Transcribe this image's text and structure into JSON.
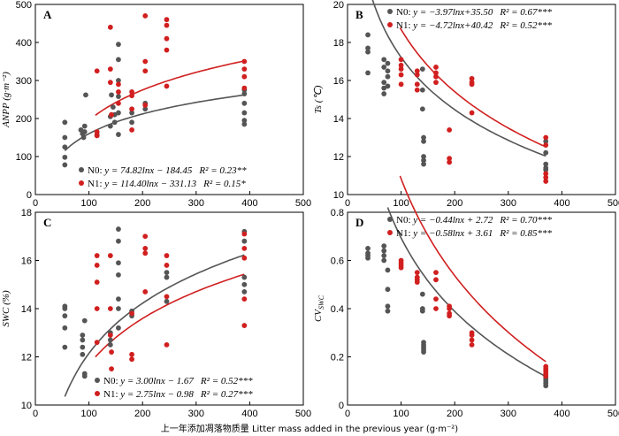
{
  "figure": {
    "xlabel": "上一年添加凋落物质量 Litter mass added in the previous year (g·m⁻²)"
  },
  "colors": {
    "N0": "#555555",
    "N1": "#d11f1f"
  },
  "chart_data": [
    {
      "type": "scatter",
      "panel": "A",
      "ylabel": "ANPP (g·m⁻²)",
      "xlim": [
        0,
        500
      ],
      "ylim": [
        0,
        500
      ],
      "xticks": [
        "0",
        "100",
        "200",
        "300",
        "400",
        "500"
      ],
      "yticks": [
        "0",
        "100",
        "200",
        "300",
        "400",
        "500"
      ],
      "legend_placement": "bottom-left",
      "series": [
        {
          "name": "N0",
          "equation": "y = 74.82lnx − 184.45",
          "r2": "R² = 0.23**",
          "fit": {
            "a": 74.82,
            "b": -184.45,
            "x_range": [
              55,
              390
            ]
          },
          "points": [
            [
              55,
              190
            ],
            [
              55,
              150
            ],
            [
              55,
              125
            ],
            [
              55,
              98
            ],
            [
              55,
              78
            ],
            [
              85,
              170
            ],
            [
              88,
              160
            ],
            [
              90,
              150
            ],
            [
              92,
              165
            ],
            [
              92,
              180
            ],
            [
              94,
              262
            ],
            [
              115,
              155
            ],
            [
              115,
              158
            ],
            [
              140,
              180
            ],
            [
              140,
              205
            ],
            [
              142,
              262
            ],
            [
              145,
              230
            ],
            [
              148,
              210
            ],
            [
              148,
              190
            ],
            [
              155,
              395
            ],
            [
              155,
              355
            ],
            [
              155,
              300
            ],
            [
              155,
              258
            ],
            [
              155,
              215
            ],
            [
              155,
              158
            ],
            [
              180,
              215
            ],
            [
              180,
              190
            ],
            [
              205,
              240
            ],
            [
              205,
              225
            ],
            [
              390,
              275
            ],
            [
              390,
              265
            ],
            [
              390,
              240
            ],
            [
              390,
              215
            ],
            [
              390,
              195
            ],
            [
              390,
              185
            ]
          ]
        },
        {
          "name": "N1",
          "equation": "y = 114.40lnx − 331.13",
          "r2": "R² = 0.15*",
          "fit": {
            "a": 114.4,
            "b": -331.13,
            "x_range": [
              112,
              390
            ]
          },
          "points": [
            [
              115,
              325
            ],
            [
              115,
              165
            ],
            [
              115,
              155
            ],
            [
              140,
              440
            ],
            [
              140,
              330
            ],
            [
              140,
              295
            ],
            [
              142,
              210
            ],
            [
              155,
              290
            ],
            [
              155,
              270
            ],
            [
              155,
              240
            ],
            [
              180,
              270
            ],
            [
              180,
              260
            ],
            [
              180,
              225
            ],
            [
              180,
              170
            ],
            [
              205,
              470
            ],
            [
              205,
              350
            ],
            [
              205,
              325
            ],
            [
              205,
              235
            ],
            [
              245,
              460
            ],
            [
              245,
              445
            ],
            [
              245,
              410
            ],
            [
              245,
              380
            ],
            [
              245,
              285
            ],
            [
              390,
              350
            ],
            [
              390,
              330
            ],
            [
              390,
              310
            ],
            [
              390,
              280
            ]
          ]
        }
      ]
    },
    {
      "type": "scatter",
      "panel": "B",
      "ylabel": "Ts (℃)",
      "xlim": [
        0,
        500
      ],
      "ylim": [
        10,
        20
      ],
      "xticks": [
        "0",
        "100",
        "200",
        "300",
        "400",
        "500"
      ],
      "yticks": [
        "10",
        "12",
        "14",
        "16",
        "18",
        "20"
      ],
      "legend_placement": "top-right",
      "series": [
        {
          "name": "N0",
          "equation": "y = −3.97lnx+35.50",
          "r2": "R² = 0.67***",
          "fit": {
            "a": -3.97,
            "b": 35.5,
            "x_range": [
              38,
              370
            ]
          },
          "points": [
            [
              38,
              18.4
            ],
            [
              38,
              17.7
            ],
            [
              38,
              17.5
            ],
            [
              38,
              16.4
            ],
            [
              68,
              17.1
            ],
            [
              68,
              16.7
            ],
            [
              68,
              15.9
            ],
            [
              68,
              15.6
            ],
            [
              68,
              15.3
            ],
            [
              75,
              16.9
            ],
            [
              75,
              16.5
            ],
            [
              75,
              16.2
            ],
            [
              75,
              15.7
            ],
            [
              140,
              16.6
            ],
            [
              140,
              15.5
            ],
            [
              140,
              14.5
            ],
            [
              142,
              13.0
            ],
            [
              142,
              12.8
            ],
            [
              142,
              12.0
            ],
            [
              142,
              11.8
            ],
            [
              142,
              11.6
            ],
            [
              370,
              12.8
            ],
            [
              370,
              12.2
            ],
            [
              370,
              11.6
            ],
            [
              370,
              11.4
            ],
            [
              370,
              11.3
            ]
          ]
        },
        {
          "name": "N1",
          "equation": "y = −4.72lnx+40.42",
          "r2": "R² = 0.52***",
          "fit": {
            "a": -4.72,
            "b": 40.42,
            "x_range": [
              98,
              370
            ]
          },
          "points": [
            [
              100,
              17.1
            ],
            [
              100,
              16.8
            ],
            [
              100,
              16.6
            ],
            [
              100,
              16.3
            ],
            [
              100,
              15.8
            ],
            [
              130,
              16.5
            ],
            [
              130,
              16.3
            ],
            [
              130,
              15.8
            ],
            [
              130,
              15.5
            ],
            [
              165,
              16.7
            ],
            [
              165,
              16.4
            ],
            [
              165,
              16.2
            ],
            [
              165,
              15.9
            ],
            [
              190,
              13.4
            ],
            [
              190,
              11.9
            ],
            [
              190,
              11.7
            ],
            [
              232,
              16.1
            ],
            [
              232,
              15.9
            ],
            [
              232,
              15.8
            ],
            [
              232,
              14.3
            ],
            [
              370,
              13.0
            ],
            [
              370,
              12.6
            ],
            [
              370,
              11.1
            ],
            [
              370,
              10.9
            ],
            [
              370,
              10.7
            ]
          ]
        }
      ]
    },
    {
      "type": "scatter",
      "panel": "C",
      "ylabel": "SWC (%)",
      "xlim": [
        0,
        500
      ],
      "ylim": [
        10,
        18
      ],
      "xticks": [
        "0",
        "100",
        "200",
        "300",
        "400",
        "500"
      ],
      "yticks": [
        "10",
        "12",
        "14",
        "16",
        "18"
      ],
      "legend_placement": "bottom-right",
      "series": [
        {
          "name": "N0",
          "equation": "y = 3.00lnx − 1.67",
          "r2": "R² = 0.52***",
          "fit": {
            "a": 3.0,
            "b": -1.67,
            "x_range": [
              55,
              390
            ]
          },
          "points": [
            [
              55,
              14.1
            ],
            [
              55,
              14.0
            ],
            [
              55,
              13.7
            ],
            [
              55,
              13.2
            ],
            [
              55,
              12.4
            ],
            [
              88,
              12.9
            ],
            [
              88,
              12.7
            ],
            [
              88,
              12.4
            ],
            [
              88,
              12.1
            ],
            [
              92,
              13.5
            ],
            [
              92,
              11.3
            ],
            [
              92,
              11.2
            ],
            [
              140,
              13.0
            ],
            [
              140,
              12.7
            ],
            [
              140,
              12.5
            ],
            [
              155,
              17.3
            ],
            [
              155,
              16.8
            ],
            [
              155,
              15.9
            ],
            [
              155,
              15.4
            ],
            [
              155,
              14.4
            ],
            [
              155,
              14.0
            ],
            [
              155,
              13.2
            ],
            [
              180,
              13.9
            ],
            [
              180,
              13.7
            ],
            [
              245,
              15.5
            ],
            [
              245,
              15.3
            ],
            [
              245,
              14.3
            ],
            [
              390,
              17.2
            ],
            [
              390,
              16.8
            ],
            [
              390,
              15.3
            ],
            [
              390,
              15.0
            ],
            [
              390,
              14.7
            ]
          ]
        },
        {
          "name": "N1",
          "equation": "y = 2.75lnx − 0.98",
          "r2": "R² = 0.27***",
          "fit": {
            "a": 2.75,
            "b": -0.98,
            "x_range": [
              112,
              390
            ]
          },
          "points": [
            [
              115,
              16.2
            ],
            [
              115,
              15.8
            ],
            [
              115,
              15.1
            ],
            [
              115,
              14.0
            ],
            [
              115,
              12.6
            ],
            [
              140,
              16.2
            ],
            [
              140,
              14.0
            ],
            [
              140,
              12.9
            ],
            [
              142,
              12.2
            ],
            [
              142,
              11.5
            ],
            [
              180,
              13.8
            ],
            [
              180,
              12.1
            ],
            [
              180,
              11.9
            ],
            [
              205,
              17.0
            ],
            [
              205,
              16.5
            ],
            [
              205,
              16.3
            ],
            [
              205,
              14.7
            ],
            [
              245,
              16.2
            ],
            [
              245,
              15.8
            ],
            [
              245,
              14.5
            ],
            [
              245,
              12.5
            ],
            [
              390,
              17.1
            ],
            [
              390,
              16.5
            ],
            [
              390,
              16.1
            ],
            [
              390,
              14.4
            ],
            [
              390,
              13.3
            ]
          ]
        }
      ]
    },
    {
      "type": "scatter",
      "panel": "D",
      "ylabel": "CVSWC",
      "ylabel_main": "CV",
      "ylabel_sub": "SWC",
      "xlim": [
        0,
        500
      ],
      "ylim": [
        0,
        0.8
      ],
      "xticks": [
        "0",
        "100",
        "200",
        "300",
        "400",
        "500"
      ],
      "yticks": [
        "0",
        "0.2",
        "0.4",
        "0.6",
        "0.8"
      ],
      "legend_placement": "top-right",
      "series": [
        {
          "name": "N0",
          "equation": "y = −0.44lnx + 2.72",
          "r2": "R² = 0.70***",
          "fit": {
            "a": -0.44,
            "b": 2.72,
            "x_range": [
              75,
              370
            ]
          },
          "points": [
            [
              38,
              0.65
            ],
            [
              38,
              0.63
            ],
            [
              38,
              0.62
            ],
            [
              38,
              0.61
            ],
            [
              68,
              0.66
            ],
            [
              68,
              0.64
            ],
            [
              68,
              0.62
            ],
            [
              68,
              0.6
            ],
            [
              75,
              0.56
            ],
            [
              75,
              0.48
            ],
            [
              75,
              0.41
            ],
            [
              75,
              0.39
            ],
            [
              140,
              0.46
            ],
            [
              140,
              0.4
            ],
            [
              140,
              0.39
            ],
            [
              142,
              0.26
            ],
            [
              142,
              0.25
            ],
            [
              142,
              0.24
            ],
            [
              142,
              0.23
            ],
            [
              142,
              0.22
            ],
            [
              370,
              0.12
            ],
            [
              370,
              0.11
            ],
            [
              370,
              0.1
            ],
            [
              370,
              0.09
            ],
            [
              370,
              0.08
            ]
          ]
        },
        {
          "name": "N1",
          "equation": "y = −0.58lnx + 3.61",
          "r2": "R² = 0.85***",
          "fit": {
            "a": -0.58,
            "b": 3.61,
            "x_range": [
              98,
              370
            ]
          },
          "points": [
            [
              100,
              0.6
            ],
            [
              100,
              0.59
            ],
            [
              100,
              0.58
            ],
            [
              100,
              0.57
            ],
            [
              130,
              0.55
            ],
            [
              130,
              0.53
            ],
            [
              130,
              0.52
            ],
            [
              130,
              0.51
            ],
            [
              165,
              0.55
            ],
            [
              165,
              0.52
            ],
            [
              165,
              0.44
            ],
            [
              165,
              0.4
            ],
            [
              190,
              0.41
            ],
            [
              190,
              0.4
            ],
            [
              190,
              0.38
            ],
            [
              190,
              0.37
            ],
            [
              232,
              0.3
            ],
            [
              232,
              0.29
            ],
            [
              232,
              0.27
            ],
            [
              232,
              0.25
            ],
            [
              370,
              0.16
            ],
            [
              370,
              0.15
            ],
            [
              370,
              0.14
            ],
            [
              370,
              0.13
            ],
            [
              370,
              0.12
            ]
          ]
        }
      ]
    }
  ]
}
